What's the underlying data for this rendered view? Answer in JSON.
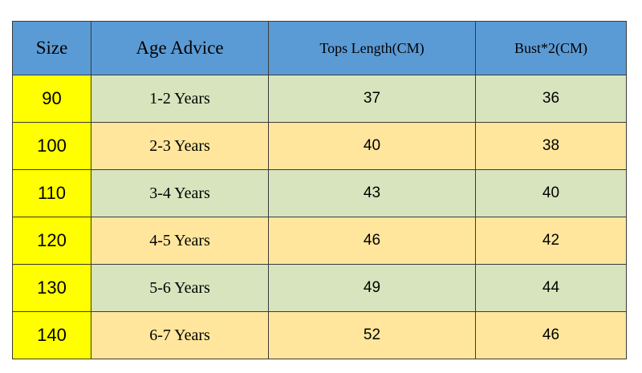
{
  "table": {
    "headers": [
      "Size",
      "Age Advice",
      "Tops Length(CM)",
      "Bust*2(CM)"
    ],
    "rows": [
      {
        "size": "90",
        "age": "1-2 Years",
        "length": "37",
        "bust": "36"
      },
      {
        "size": "100",
        "age": "2-3 Years",
        "length": "40",
        "bust": "38"
      },
      {
        "size": "110",
        "age": "3-4 Years",
        "length": "43",
        "bust": "40"
      },
      {
        "size": "120",
        "age": "4-5 Years",
        "length": "46",
        "bust": "42"
      },
      {
        "size": "130",
        "age": "5-6 Years",
        "length": "49",
        "bust": "44"
      },
      {
        "size": "140",
        "age": "6-7 Years",
        "length": "52",
        "bust": "46"
      }
    ]
  },
  "colors": {
    "header_bg": "#5b9bd5",
    "size_bg": "#ffff00",
    "row_green": "#d8e4bd",
    "row_orange": "#ffe69c"
  }
}
